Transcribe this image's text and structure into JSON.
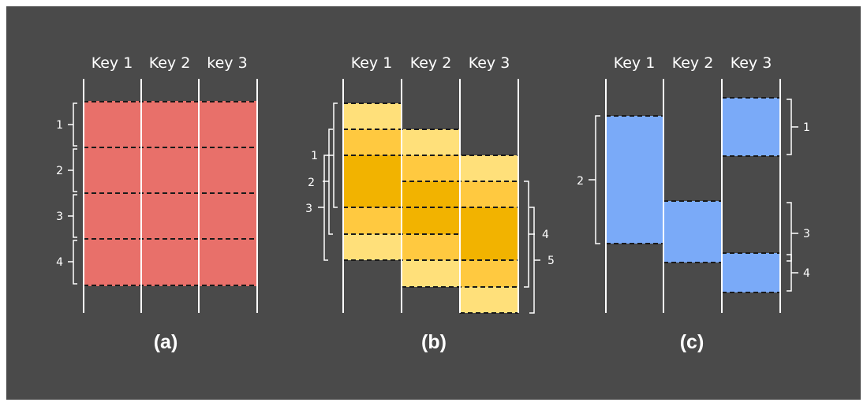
{
  "colors": {
    "background": "#4a4a4a",
    "frame": "#ffffff",
    "panel_a_fill": "#e8706a",
    "panel_b_light": "#ffe07a",
    "panel_b_mid": "#ffc940",
    "panel_b_dark": "#f2b300",
    "panel_c_fill": "#7aaaf8",
    "line": "#ffffff",
    "dash": "#1a1a1a"
  },
  "panels": [
    {
      "id": "a",
      "caption": "(a)",
      "keys": [
        "Key 1",
        "Key 2",
        "key 3"
      ],
      "brackets": [
        "1",
        "2",
        "3",
        "4"
      ]
    },
    {
      "id": "b",
      "caption": "(b)",
      "keys": [
        "Key 1",
        "Key 2",
        "Key 3"
      ],
      "brackets": [
        "1",
        "2",
        "3",
        "4",
        "5"
      ]
    },
    {
      "id": "c",
      "caption": "(c)",
      "keys": [
        "Key 1",
        "Key 2",
        "Key 3"
      ],
      "brackets": [
        "1",
        "2",
        "3",
        "4"
      ]
    }
  ]
}
